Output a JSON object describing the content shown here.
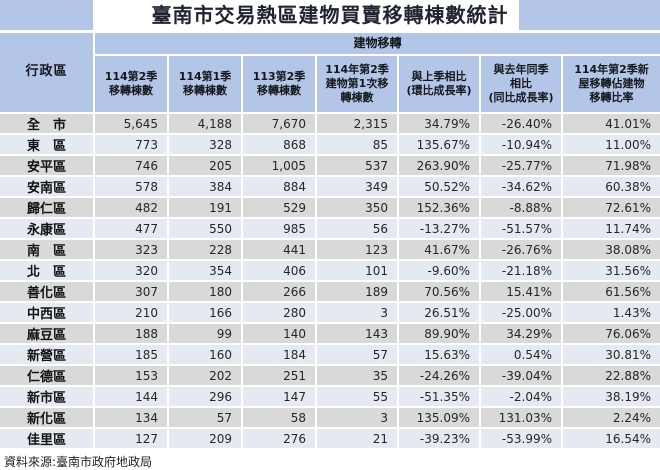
{
  "title": "臺南市交易熱區建物買賣移轉棟數統計",
  "source": "資料來源:臺南市政府地政局",
  "colors": {
    "header_blue": "#b4c6e7",
    "row_gray": "#d9d9d9",
    "row_pale_blue": "#e5eaf2"
  },
  "table": {
    "corner_header": "行政區",
    "group_header": "建物移轉",
    "columns": [
      "114第2季\n移轉棟數",
      "114第1季\n移轉棟數",
      "113第2季\n移轉棟數",
      "114年第2季\n建物第1次移\n轉棟數",
      "與上季相比\n(環比成長率)",
      "與去年同季\n相比\n(同比成長率)",
      "114年第2季新\n屋移轉佔建物\n移轉比率"
    ],
    "rows": [
      {
        "name": "全　市",
        "cells": [
          "5,645",
          "4,188",
          "7,670",
          "2,315",
          "34.79%",
          "-26.40%",
          "41.01%"
        ]
      },
      {
        "name": "東　區",
        "cells": [
          "773",
          "328",
          "868",
          "85",
          "135.67%",
          "-10.94%",
          "11.00%"
        ]
      },
      {
        "name": "安平區",
        "cells": [
          "746",
          "205",
          "1,005",
          "537",
          "263.90%",
          "-25.77%",
          "71.98%"
        ]
      },
      {
        "name": "安南區",
        "cells": [
          "578",
          "384",
          "884",
          "349",
          "50.52%",
          "-34.62%",
          "60.38%"
        ]
      },
      {
        "name": "歸仁區",
        "cells": [
          "482",
          "191",
          "529",
          "350",
          "152.36%",
          "-8.88%",
          "72.61%"
        ]
      },
      {
        "name": "永康區",
        "cells": [
          "477",
          "550",
          "985",
          "56",
          "-13.27%",
          "-51.57%",
          "11.74%"
        ]
      },
      {
        "name": "南　區",
        "cells": [
          "323",
          "228",
          "441",
          "123",
          "41.67%",
          "-26.76%",
          "38.08%"
        ]
      },
      {
        "name": "北　區",
        "cells": [
          "320",
          "354",
          "406",
          "101",
          "-9.60%",
          "-21.18%",
          "31.56%"
        ]
      },
      {
        "name": "善化區",
        "cells": [
          "307",
          "180",
          "266",
          "189",
          "70.56%",
          "15.41%",
          "61.56%"
        ]
      },
      {
        "name": "中西區",
        "cells": [
          "210",
          "166",
          "280",
          "3",
          "26.51%",
          "-25.00%",
          "1.43%"
        ]
      },
      {
        "name": "麻豆區",
        "cells": [
          "188",
          "99",
          "140",
          "143",
          "89.90%",
          "34.29%",
          "76.06%"
        ]
      },
      {
        "name": "新營區",
        "cells": [
          "185",
          "160",
          "184",
          "57",
          "15.63%",
          "0.54%",
          "30.81%"
        ]
      },
      {
        "name": "仁德區",
        "cells": [
          "153",
          "202",
          "251",
          "35",
          "-24.26%",
          "-39.04%",
          "22.88%"
        ]
      },
      {
        "name": "新市區",
        "cells": [
          "144",
          "296",
          "147",
          "55",
          "-51.35%",
          "-2.04%",
          "38.19%"
        ]
      },
      {
        "name": "新化區",
        "cells": [
          "134",
          "57",
          "58",
          "3",
          "135.09%",
          "131.03%",
          "2.24%"
        ]
      },
      {
        "name": "佳里區",
        "cells": [
          "127",
          "209",
          "276",
          "21",
          "-39.23%",
          "-53.99%",
          "16.54%"
        ]
      }
    ]
  }
}
